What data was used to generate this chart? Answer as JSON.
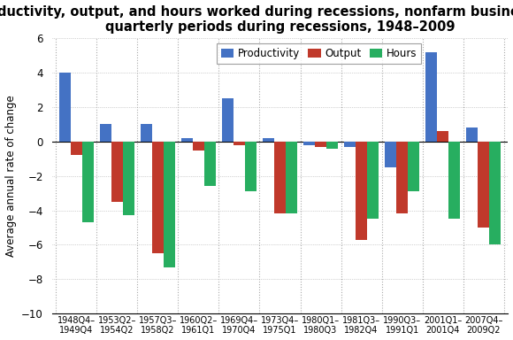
{
  "title": "Productivity, output, and hours worked during recessions, nonfarm business sector,\nquarterly periods during recessions, 1948–2009",
  "ylabel": "Average annual rate of change",
  "categories": [
    "1948Q4–\n1949Q4",
    "1953Q2–\n1954Q2",
    "1957Q3–\n1958Q2",
    "1960Q2–\n1961Q1",
    "1969Q4–\n1970Q4",
    "1973Q4–\n1975Q1",
    "1980Q1–\n1980Q3",
    "1981Q3–\n1982Q4",
    "1990Q3–\n1991Q1",
    "2001Q1–\n2001Q4",
    "2007Q4–\n2009Q2"
  ],
  "productivity": [
    4.0,
    1.0,
    1.0,
    0.2,
    2.5,
    0.2,
    -0.2,
    -0.3,
    -1.5,
    5.2,
    0.8
  ],
  "output": [
    -0.8,
    -3.5,
    -6.5,
    -0.5,
    -0.2,
    -4.2,
    -0.3,
    -5.7,
    -4.2,
    0.6,
    -5.0
  ],
  "hours": [
    -4.7,
    -4.3,
    -7.3,
    -2.6,
    -2.9,
    -4.2,
    -0.4,
    -4.5,
    -2.9,
    -4.5,
    -6.0
  ],
  "bar_colors": {
    "productivity": "#4472c4",
    "output": "#c0392b",
    "hours": "#27ae60"
  },
  "ylim": [
    -10,
    6
  ],
  "yticks": [
    -10,
    -8,
    -6,
    -4,
    -2,
    0,
    2,
    4,
    6
  ],
  "legend_labels": [
    "Productivity",
    "Output",
    "Hours"
  ],
  "background_color": "#ffffff",
  "grid_color": "#aaaaaa"
}
